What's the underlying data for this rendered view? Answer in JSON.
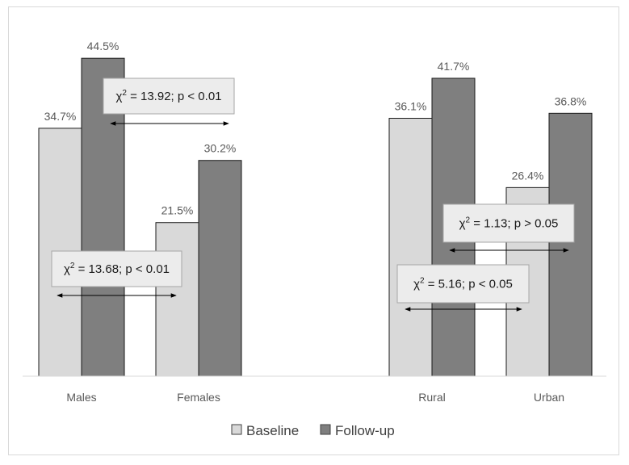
{
  "chart_data": {
    "type": "bar",
    "categories": [
      "Males",
      "Females",
      "Rural",
      "Urban"
    ],
    "series": [
      {
        "name": "Baseline",
        "values": [
          34.7,
          21.5,
          36.1,
          26.4
        ],
        "color": "#d9d9d9"
      },
      {
        "name": "Follow-up",
        "values": [
          44.5,
          30.2,
          41.7,
          36.8
        ],
        "color": "#7f7f7f"
      }
    ],
    "value_labels": [
      [
        "34.7%",
        "21.5%",
        "36.1%",
        "26.4%"
      ],
      [
        "44.5%",
        "30.2%",
        "41.7%",
        "36.8%"
      ]
    ],
    "ylim": [
      0,
      50
    ],
    "grid": false,
    "legend": "bottom-center",
    "annotations": [
      {
        "category": "Males",
        "chi": "2",
        "text": " = 13.92; p < 0.01"
      },
      {
        "category": "Females",
        "chi": "2",
        "text": " = 13.68; p < 0.01"
      },
      {
        "category": "Rural",
        "chi": "2",
        "text": " = 5.16; p < 0.05"
      },
      {
        "category": "Urban",
        "chi": "2",
        "text": " = 1.13; p > 0.05"
      }
    ],
    "chi_symbol": "χ"
  }
}
